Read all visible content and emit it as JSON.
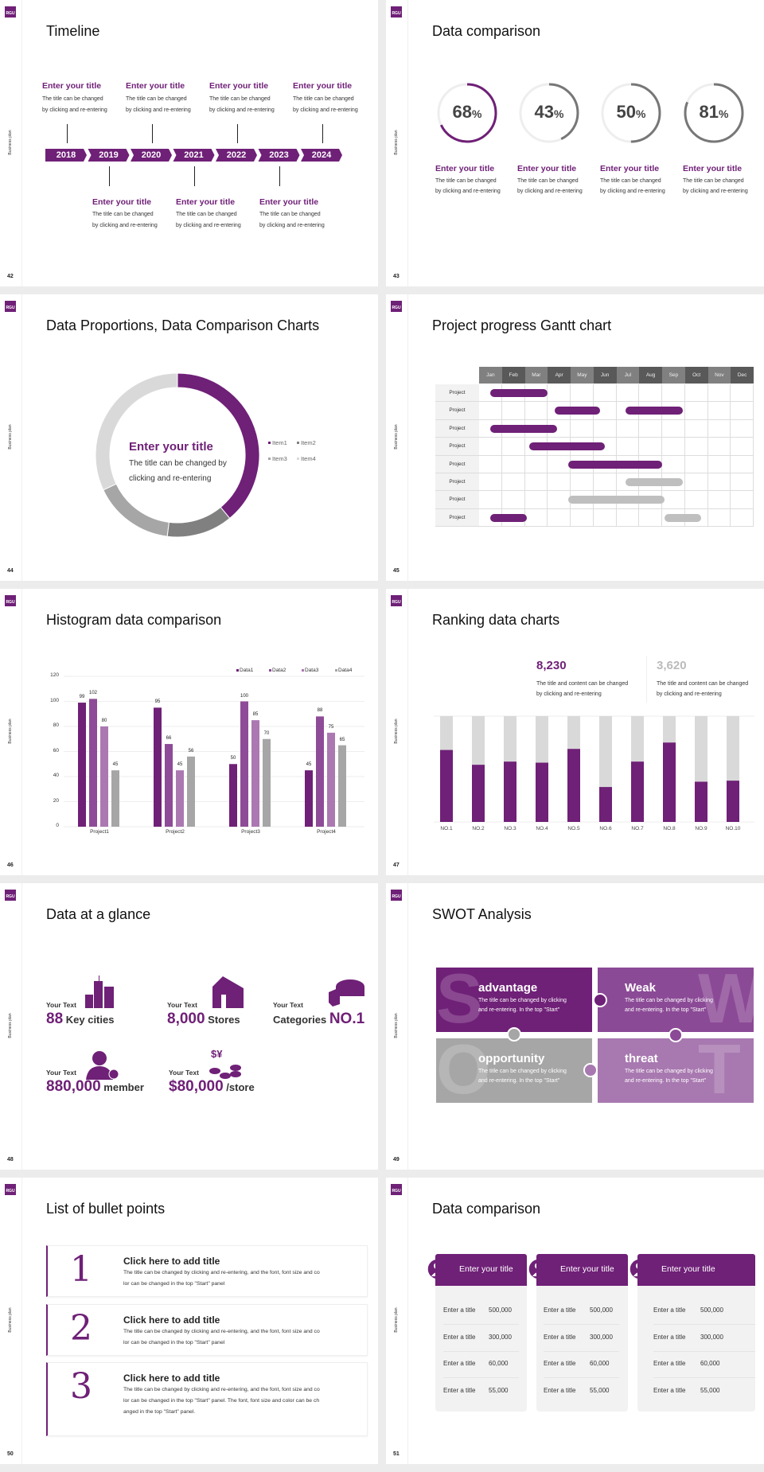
{
  "common": {
    "side_label": "Business plan",
    "logo_text": "RGU"
  },
  "colors": {
    "purple": "#6f2077",
    "purple2": "#8e4b97",
    "purple3": "#ab78b2",
    "gray": "#a6a6a6",
    "dark_gray": "#777777",
    "light_gray": "#d9d9d9"
  },
  "slides": [
    {
      "number": "42",
      "title": "Timeline",
      "years": [
        "2018",
        "2019",
        "2020",
        "2021",
        "2022",
        "2023",
        "2024"
      ],
      "top_items": [
        {
          "title": "Enter your title",
          "desc": [
            "The title can be changed",
            "by clicking and re-entering"
          ]
        },
        {
          "title": "Enter your title",
          "desc": [
            "The title can be changed",
            "by clicking and re-entering"
          ]
        },
        {
          "title": "Enter your title",
          "desc": [
            "The title can be changed",
            "by clicking and re-entering"
          ]
        },
        {
          "title": "Enter your title",
          "desc": [
            "The title can be changed",
            "by clicking and re-entering"
          ]
        }
      ],
      "bottom_items": [
        {
          "title": "Enter your title",
          "desc": [
            "The title can be changed",
            "by clicking and re-entering"
          ]
        },
        {
          "title": "Enter your title",
          "desc": [
            "The title can be changed",
            "by clicking and re-entering"
          ]
        },
        {
          "title": "Enter your title",
          "desc": [
            "The title can be changed",
            "by clicking and re-entering"
          ]
        }
      ]
    },
    {
      "number": "43",
      "title": "Data comparison",
      "rings": [
        {
          "value": 68,
          "label": "68",
          "unit": "%",
          "color": "#6f2077",
          "title": "Enter your title",
          "desc": [
            "The title can be changed",
            "by clicking and re-entering"
          ]
        },
        {
          "value": 43,
          "label": "43",
          "unit": "%",
          "color": "#777777",
          "title": "Enter your title",
          "desc": [
            "The title can be changed",
            "by clicking and re-entering"
          ]
        },
        {
          "value": 50,
          "label": "50",
          "unit": "%",
          "color": "#777777",
          "title": "Enter your title",
          "desc": [
            "The title can be changed",
            "by clicking and re-entering"
          ]
        },
        {
          "value": 81,
          "label": "81",
          "unit": "%",
          "color": "#777777",
          "title": "Enter your title",
          "desc": [
            "The title can be changed",
            "by clicking and re-entering"
          ]
        }
      ]
    },
    {
      "number": "44",
      "title": "Data Proportions, Data Comparison Charts",
      "center_title": "Enter your title",
      "center_desc": [
        "The title can be changed by",
        "clicking and re-entering"
      ]
    },
    {
      "number": "45",
      "title": "Project progress Gantt chart",
      "months": [
        "Jan",
        "Feb",
        "Mar",
        "Apr",
        "May",
        "Jun",
        "Jul",
        "Aug",
        "Sep",
        "Oct",
        "Nov",
        "Dec"
      ],
      "tasks": [
        {
          "label": "Project",
          "bars": [
            {
              "start": 0.5,
              "end": 3.0,
              "status": "active"
            }
          ]
        },
        {
          "label": "Project",
          "bars": [
            {
              "start": 3.3,
              "end": 5.3,
              "status": "active"
            },
            {
              "start": 6.4,
              "end": 8.9,
              "status": "active"
            }
          ]
        },
        {
          "label": "Project",
          "bars": [
            {
              "start": 0.5,
              "end": 3.4,
              "status": "active"
            }
          ]
        },
        {
          "label": "Project",
          "bars": [
            {
              "start": 2.2,
              "end": 5.5,
              "status": "active"
            }
          ]
        },
        {
          "label": "Project",
          "bars": [
            {
              "start": 3.9,
              "end": 8.0,
              "status": "active"
            }
          ]
        },
        {
          "label": "Project",
          "bars": [
            {
              "start": 6.4,
              "end": 8.9,
              "status": "pending"
            }
          ]
        },
        {
          "label": "Project",
          "bars": [
            {
              "start": 3.9,
              "end": 8.1,
              "status": "pending"
            }
          ]
        },
        {
          "label": "Project",
          "bars": [
            {
              "start": 0.5,
              "end": 2.1,
              "status": "active"
            },
            {
              "start": 8.1,
              "end": 9.7,
              "status": "pending"
            }
          ]
        }
      ]
    },
    {
      "number": "46",
      "title": "Histogram data comparison"
    },
    {
      "number": "47",
      "title": "Ranking data charts",
      "stats": [
        {
          "value": "8,230",
          "desc": [
            "The title and content can be changed",
            "by clicking and re-entering"
          ],
          "color": "#6f2077"
        },
        {
          "value": "3,620",
          "desc": [
            "The title and content can be changed",
            "by clicking and re-entering"
          ],
          "color": "#bbbbbb"
        }
      ]
    },
    {
      "number": "48",
      "title": "Data at a glance",
      "items": [
        {
          "label": "Your Text",
          "prefix": "",
          "num": "88",
          "suffix": " Key cities",
          "icon": "city-buildings-icon"
        },
        {
          "label": "Your Text",
          "prefix": "",
          "num": "8,000",
          "suffix": " Stores",
          "icon": "store-icon"
        },
        {
          "label": "Your Text",
          "prefix": "Categories ",
          "num": "NO.1",
          "suffix": "",
          "icon": "pie-chart-icon"
        },
        {
          "label": "Your Text",
          "prefix": "",
          "num": "880,000",
          "suffix": " member",
          "icon": "add-member-icon"
        },
        {
          "label": "Your Text",
          "prefix": "",
          "num": "$80,000",
          "suffix": " /store",
          "icon": "coins-icon"
        }
      ]
    },
    {
      "number": "49",
      "title": "SWOT Analysis",
      "quadrants": [
        {
          "letter": "S",
          "title": "advantage",
          "desc": [
            "The title can be changed by clicking",
            "and re-entering. In the top \"Start\""
          ],
          "color": "#6f2077"
        },
        {
          "letter": "W",
          "title": "Weak",
          "desc": [
            "The title can be changed by clicking",
            "and re-entering. In the top \"Start\""
          ],
          "color": "#8b4a96"
        },
        {
          "letter": "O",
          "title": "opportunity",
          "desc": [
            "The title can be changed by clicking",
            "and re-entering. In the top \"Start\""
          ],
          "color": "#a6a6a6"
        },
        {
          "letter": "T",
          "title": "threat",
          "desc": [
            "The title can be changed by clicking",
            "and re-entering. In the top \"Start\""
          ],
          "color": "#a878b0"
        }
      ]
    },
    {
      "number": "50",
      "title": "List of bullet points",
      "bullets": [
        {
          "num": "1",
          "title": "Click here to add title",
          "desc": [
            "The title can be changed by clicking and re-entering, and the font, font size and co",
            "lor can be changed in the top \"Start\" panel"
          ]
        },
        {
          "num": "2",
          "title": "Click here to add title",
          "desc": [
            "The title can be changed by clicking and re-entering, and the font, font size and co",
            "lor can be changed in the top \"Start\" panel"
          ]
        },
        {
          "num": "3",
          "title": "Click here to add title",
          "desc": [
            "The title can be changed by clicking and re-entering, and the font, font size and co",
            "lor can be changed in the top \"Start\" panel. The font, font size and color can be ch",
            "anged in the top \"Start\" panel."
          ]
        }
      ]
    },
    {
      "number": "51",
      "title": "Data comparison",
      "cards": [
        {
          "title": "Enter your title",
          "icon": "tablet-user-icon",
          "rows": [
            {
              "label": "Enter a title",
              "value": "500,000"
            },
            {
              "label": "Enter a title",
              "value": "300,000"
            },
            {
              "label": "Enter a title",
              "value": "60,000"
            },
            {
              "label": "Enter a title",
              "value": "55,000"
            }
          ]
        },
        {
          "title": "Enter your title",
          "icon": "add-user-icon",
          "rows": [
            {
              "label": "Enter a title",
              "value": "500,000"
            },
            {
              "label": "Enter a title",
              "value": "300,000"
            },
            {
              "label": "Enter a title",
              "value": "60,000"
            },
            {
              "label": "Enter a title",
              "value": "55,000"
            }
          ]
        },
        {
          "title": "Enter your title",
          "icon": "user-group-icon",
          "rows": [
            {
              "label": "Enter a title",
              "value": "500,000"
            },
            {
              "label": "Enter a title",
              "value": "300,000"
            },
            {
              "label": "Enter a title",
              "value": "60,000"
            },
            {
              "label": "Enter a title",
              "value": "55,000"
            }
          ]
        }
      ]
    }
  ],
  "chart_data": [
    {
      "type": "pie",
      "donut": true,
      "categories": [
        "Item1",
        "Item2",
        "Item3",
        "Item4"
      ],
      "values": [
        39,
        13,
        16,
        32
      ],
      "colors": [
        "#6f2077",
        "#808080",
        "#a6a6a6",
        "#d9d9d9"
      ],
      "legend": "right"
    },
    {
      "type": "bar",
      "categories": [
        "Project1",
        "Project2",
        "Project3",
        "Project4"
      ],
      "series": [
        {
          "name": "Data1",
          "values": [
            99,
            95,
            50,
            45
          ],
          "color": "#6f2077"
        },
        {
          "name": "Data2",
          "values": [
            102,
            66,
            100,
            88
          ],
          "color": "#8e4b97"
        },
        {
          "name": "Data3",
          "values": [
            80,
            45,
            85,
            75
          ],
          "color": "#ab78b2"
        },
        {
          "name": "Data4",
          "values": [
            45,
            56,
            70,
            65
          ],
          "color": "#a6a6a6"
        }
      ],
      "ylim": [
        0,
        120
      ],
      "yticks": [
        0,
        20,
        40,
        60,
        80,
        100,
        120
      ],
      "grid": true,
      "legend": "top-right",
      "data_labels": true
    },
    {
      "type": "bar",
      "stacked": true,
      "categories": [
        "NO.1",
        "NO.2",
        "NO.3",
        "NO.4",
        "NO.5",
        "NO.6",
        "NO.7",
        "NO.8",
        "NO.9",
        "NO.10"
      ],
      "values": [
        68,
        54,
        57,
        56,
        69,
        33,
        57,
        75,
        38,
        39
      ],
      "ylim": [
        0,
        100
      ],
      "colors": [
        "#6f2077",
        "#d9d9d9"
      ]
    }
  ]
}
